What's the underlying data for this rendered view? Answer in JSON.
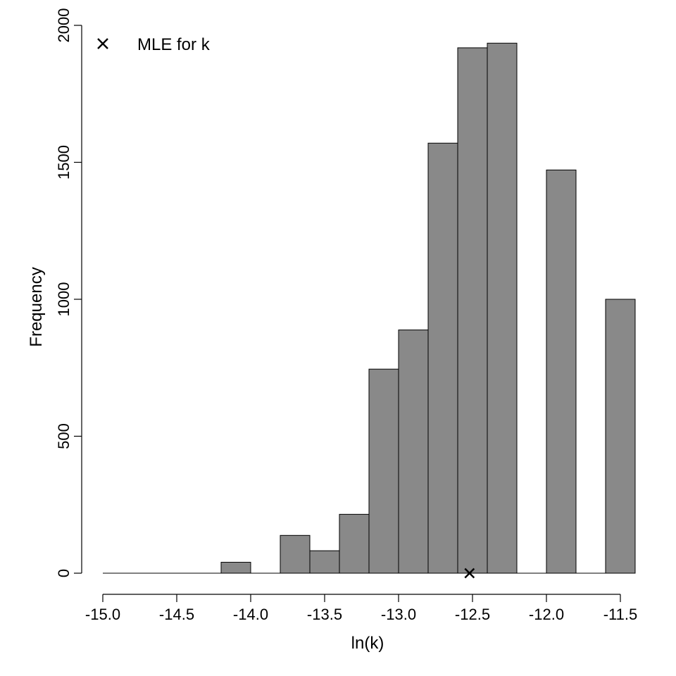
{
  "chart_data": {
    "type": "bar",
    "title": "",
    "xlabel": "ln(k)",
    "ylabel": "Frequency",
    "xlim": [
      -15.0,
      -11.4
    ],
    "ylim": [
      0,
      2000
    ],
    "x_ticks": [
      -15.0,
      -14.5,
      -14.0,
      -13.5,
      -13.0,
      -12.5,
      -12.0,
      -11.5
    ],
    "x_tick_labels": [
      "-15.0",
      "-14.5",
      "-14.0",
      "-13.5",
      "-13.0",
      "-12.5",
      "-12.0",
      "-11.5"
    ],
    "y_ticks": [
      0,
      500,
      1000,
      1500,
      2000
    ],
    "y_tick_labels": [
      "0",
      "500",
      "1000",
      "1500",
      "2000"
    ],
    "bin_width": 0.2,
    "bins": [
      {
        "x0": -15.0,
        "x1": -14.8,
        "count": 0
      },
      {
        "x0": -14.8,
        "x1": -14.6,
        "count": 0
      },
      {
        "x0": -14.6,
        "x1": -14.4,
        "count": 0
      },
      {
        "x0": -14.4,
        "x1": -14.2,
        "count": 0
      },
      {
        "x0": -14.2,
        "x1": -14.0,
        "count": 40
      },
      {
        "x0": -14.0,
        "x1": -13.8,
        "count": 0
      },
      {
        "x0": -13.8,
        "x1": -13.6,
        "count": 138
      },
      {
        "x0": -13.6,
        "x1": -13.4,
        "count": 82
      },
      {
        "x0": -13.4,
        "x1": -13.2,
        "count": 215
      },
      {
        "x0": -13.2,
        "x1": -13.0,
        "count": 745
      },
      {
        "x0": -13.0,
        "x1": -12.8,
        "count": 888
      },
      {
        "x0": -12.8,
        "x1": -12.6,
        "count": 1570
      },
      {
        "x0": -12.6,
        "x1": -12.4,
        "count": 1918
      },
      {
        "x0": -12.4,
        "x1": -12.2,
        "count": 1935
      },
      {
        "x0": -12.2,
        "x1": -12.0,
        "count": 0
      },
      {
        "x0": -12.0,
        "x1": -11.8,
        "count": 1472
      },
      {
        "x0": -11.8,
        "x1": -11.6,
        "count": 0
      },
      {
        "x0": -11.6,
        "x1": -11.4,
        "count": 1000
      }
    ],
    "mle": {
      "x": -12.52,
      "y": 0,
      "marker": "x"
    },
    "legend": {
      "label": "MLE for k",
      "marker": "x",
      "position": "top-left"
    },
    "bar_color": "#898989",
    "bar_edge_color": "#000000",
    "grid": false
  }
}
